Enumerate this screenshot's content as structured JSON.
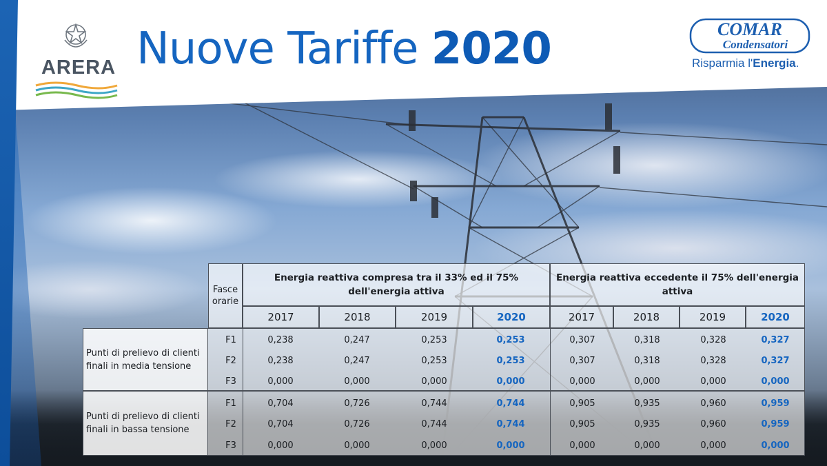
{
  "header": {
    "title_light": "Nuove Tariffe",
    "title_bold": "2020",
    "left_logo": {
      "text": "ARERA",
      "icon": "italian-republic-emblem"
    },
    "right_logo": {
      "line1": "COMAR",
      "line2": "Condensatori",
      "tagline_light": "Risparmia l'",
      "tagline_bold": "Energia",
      "tagline_end": "."
    }
  },
  "table": {
    "fasce_header": "Fasce orarie",
    "group1_title": "Energia reattiva compresa tra il 33% ed il 75% dell'energia attiva",
    "group2_title": "Energia reattiva eccedente il 75% dell'energia attiva",
    "years": [
      "2017",
      "2018",
      "2019",
      "2020",
      "2017",
      "2018",
      "2019",
      "2020"
    ],
    "groups": [
      {
        "label": "Punti di prelievo di clienti finali in media tensione",
        "rows": [
          {
            "fascia": "F1",
            "values": [
              "0,238",
              "0,247",
              "0,253",
              "0,253",
              "0,307",
              "0,318",
              "0,328",
              "0,327"
            ]
          },
          {
            "fascia": "F2",
            "values": [
              "0,238",
              "0,247",
              "0,253",
              "0,253",
              "0,307",
              "0,318",
              "0,328",
              "0,327"
            ]
          },
          {
            "fascia": "F3",
            "values": [
              "0,000",
              "0,000",
              "0,000",
              "0,000",
              "0,000",
              "0,000",
              "0,000",
              "0,000"
            ]
          }
        ]
      },
      {
        "label": "Punti di prelievo di clienti finali in bassa tensione",
        "rows": [
          {
            "fascia": "F1",
            "values": [
              "0,704",
              "0,726",
              "0,744",
              "0,744",
              "0,905",
              "0,935",
              "0,960",
              "0,959"
            ]
          },
          {
            "fascia": "F2",
            "values": [
              "0,704",
              "0,726",
              "0,744",
              "0,744",
              "0,905",
              "0,935",
              "0,960",
              "0,959"
            ]
          },
          {
            "fascia": "F3",
            "values": [
              "0,000",
              "0,000",
              "0,000",
              "0,000",
              "0,000",
              "0,000",
              "0,000",
              "0,000"
            ]
          }
        ]
      }
    ]
  },
  "colors": {
    "accent": "#1565c0",
    "header_bg": "#ffffff",
    "text": "#1b1e22"
  }
}
